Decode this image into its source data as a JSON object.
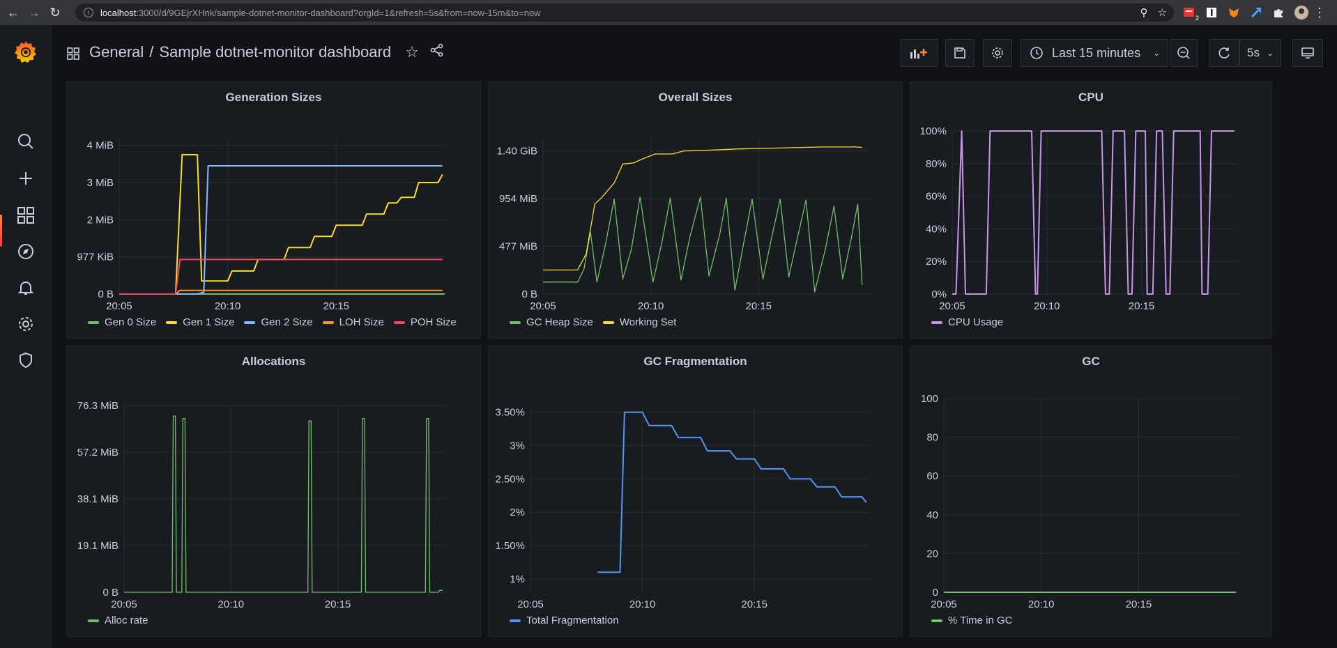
{
  "browser": {
    "url_host": "localhost",
    "url_path": ":3000/d/9GEjrXHnk/sample-dotnet-monitor-dashboard?orgId=1&refresh=5s&from=now-15m&to=now",
    "ext_badge": "2"
  },
  "header": {
    "folder": "General",
    "separator": "/",
    "title": "Sample dotnet-monitor dashboard",
    "time_range": "Last 15 minutes",
    "refresh": "5s"
  },
  "colors": {
    "green": "#73bf69",
    "yellow": "#fade2a",
    "blue": "#8ab8ff",
    "orange": "#ff9830",
    "red": "#f2495c",
    "purple": "#ca95e5",
    "fragblue": "#5794f2"
  },
  "panels": [
    {
      "title": "Generation Sizes",
      "legend": [
        "Gen 0 Size",
        "Gen 1 Size",
        "Gen 2 Size",
        "LOH Size",
        "POH Size"
      ],
      "chart_data": {
        "type": "line",
        "x_ticks": [
          "20:05",
          "20:10",
          "20:15"
        ],
        "y_ticks": [
          "0 B",
          "977 KiB",
          "2 MiB",
          "3 MiB",
          "4 MiB"
        ],
        "y_tick_values": [
          0,
          1,
          2,
          3,
          4
        ],
        "ylim": [
          0,
          4.2
        ],
        "x_range": [
          5,
          20.1
        ],
        "series": [
          {
            "name": "Gen 0 Size",
            "color": "green",
            "points": [
              [
                5,
                0
              ],
              [
                20,
                0
              ]
            ]
          },
          {
            "name": "Gen 1 Size",
            "color": "yellow",
            "points": [
              [
                5,
                0
              ],
              [
                7.6,
                0
              ],
              [
                7.9,
                3.75
              ],
              [
                8.6,
                3.75
              ],
              [
                8.8,
                0.35
              ],
              [
                9.1,
                0.35
              ],
              [
                9.2,
                0.35
              ],
              [
                10,
                0.35
              ],
              [
                10.2,
                0.62
              ],
              [
                11.2,
                0.62
              ],
              [
                11.4,
                0.93
              ],
              [
                12.6,
                0.93
              ],
              [
                12.8,
                1.25
              ],
              [
                13.8,
                1.25
              ],
              [
                14,
                1.55
              ],
              [
                14.8,
                1.55
              ],
              [
                15,
                1.85
              ],
              [
                16.2,
                1.85
              ],
              [
                16.4,
                2.15
              ],
              [
                17.2,
                2.15
              ],
              [
                17.4,
                2.45
              ],
              [
                17.8,
                2.45
              ],
              [
                18,
                2.6
              ],
              [
                18.6,
                2.6
              ],
              [
                18.8,
                3
              ],
              [
                19.7,
                3
              ],
              [
                19.9,
                3.22
              ]
            ]
          },
          {
            "name": "Gen 2 Size",
            "color": "blue",
            "points": [
              [
                5,
                0
              ],
              [
                8.6,
                0
              ],
              [
                8.9,
                0.05
              ],
              [
                9.1,
                3.45
              ],
              [
                19.9,
                3.45
              ]
            ]
          },
          {
            "name": "LOH Size",
            "color": "orange",
            "points": [
              [
                5,
                0
              ],
              [
                7.6,
                0
              ],
              [
                7.8,
                0.1
              ],
              [
                19.9,
                0.1
              ]
            ]
          },
          {
            "name": "POH Size",
            "color": "red",
            "points": [
              [
                5,
                0
              ],
              [
                7.6,
                0
              ],
              [
                7.8,
                0.93
              ],
              [
                19.9,
                0.93
              ]
            ]
          }
        ]
      }
    },
    {
      "title": "Overall Sizes",
      "legend": [
        "GC Heap Size",
        "Working Set"
      ],
      "chart_data": {
        "type": "line",
        "x_ticks": [
          "20:05",
          "20:10",
          "20:15"
        ],
        "y_ticks": [
          "0 B",
          "477 MiB",
          "954 MiB",
          "1.40 GiB"
        ],
        "y_tick_values": [
          0,
          477,
          954,
          1430
        ],
        "ylim": [
          0,
          1560
        ],
        "x_range": [
          5,
          20.1
        ],
        "series": [
          {
            "name": "GC Heap Size",
            "color": "green",
            "points": [
              [
                5,
                120
              ],
              [
                6.6,
                120
              ],
              [
                6.9,
                250
              ],
              [
                7.2,
                620
              ],
              [
                7.5,
                120
              ],
              [
                7.9,
                500
              ],
              [
                8.3,
                950
              ],
              [
                8.7,
                150
              ],
              [
                9.1,
                450
              ],
              [
                9.5,
                970
              ],
              [
                10.1,
                120
              ],
              [
                10.5,
                500
              ],
              [
                10.9,
                960
              ],
              [
                11.4,
                140
              ],
              [
                11.8,
                560
              ],
              [
                12.3,
                970
              ],
              [
                12.7,
                180
              ],
              [
                13.2,
                600
              ],
              [
                13.5,
                960
              ],
              [
                13.9,
                40
              ],
              [
                14.3,
                500
              ],
              [
                14.7,
                950
              ],
              [
                15.2,
                150
              ],
              [
                15.6,
                560
              ],
              [
                16,
                950
              ],
              [
                16.4,
                170
              ],
              [
                16.8,
                560
              ],
              [
                17.2,
                940
              ],
              [
                17.6,
                20
              ],
              [
                18.1,
                450
              ],
              [
                18.5,
                880
              ],
              [
                18.9,
                150
              ],
              [
                19.3,
                560
              ],
              [
                19.6,
                900
              ],
              [
                19.8,
                90
              ]
            ]
          },
          {
            "name": "Working Set",
            "color": "yellow",
            "points": [
              [
                5,
                240
              ],
              [
                6.6,
                240
              ],
              [
                7,
                400
              ],
              [
                7.4,
                900
              ],
              [
                7.7,
                960
              ],
              [
                8.3,
                1110
              ],
              [
                8.7,
                1300
              ],
              [
                9.2,
                1310
              ],
              [
                9.6,
                1350
              ],
              [
                10.2,
                1400
              ],
              [
                11,
                1400
              ],
              [
                11.5,
                1430
              ],
              [
                13,
                1440
              ],
              [
                14,
                1450
              ],
              [
                15,
                1455
              ],
              [
                16,
                1460
              ],
              [
                17,
                1465
              ],
              [
                18,
                1470
              ],
              [
                19.5,
                1470
              ],
              [
                19.8,
                1465
              ]
            ]
          }
        ]
      }
    },
    {
      "title": "CPU",
      "legend": [
        "CPU Usage"
      ],
      "chart_data": {
        "type": "line",
        "x_ticks": [
          "20:05",
          "20:10",
          "20:15"
        ],
        "y_ticks": [
          "0%",
          "20%",
          "40%",
          "60%",
          "80%",
          "100%"
        ],
        "y_tick_values": [
          0,
          20,
          40,
          60,
          80,
          100
        ],
        "ylim": [
          0,
          100
        ],
        "x_range": [
          5,
          20.1
        ],
        "series": [
          {
            "name": "CPU Usage",
            "color": "purple",
            "points": [
              [
                5,
                0
              ],
              [
                5.2,
                0
              ],
              [
                5.5,
                100
              ],
              [
                5.7,
                0
              ],
              [
                6.8,
                0
              ],
              [
                7,
                100
              ],
              [
                9.2,
                100
              ],
              [
                9.4,
                0
              ],
              [
                9.5,
                0
              ],
              [
                9.7,
                100
              ],
              [
                12.9,
                100
              ],
              [
                13.1,
                0
              ],
              [
                13.3,
                0
              ],
              [
                13.5,
                100
              ],
              [
                14.1,
                100
              ],
              [
                14.3,
                0
              ],
              [
                14.5,
                0
              ],
              [
                14.7,
                100
              ],
              [
                15.2,
                100
              ],
              [
                15.3,
                0
              ],
              [
                15.6,
                0
              ],
              [
                15.8,
                100
              ],
              [
                16.1,
                100
              ],
              [
                16.3,
                0
              ],
              [
                16.5,
                0
              ],
              [
                16.7,
                100
              ],
              [
                18.1,
                100
              ],
              [
                18.2,
                0
              ],
              [
                18.5,
                0
              ],
              [
                18.7,
                100
              ],
              [
                19.9,
                100
              ]
            ]
          }
        ]
      }
    },
    {
      "title": "Allocations",
      "legend": [
        "Alloc rate"
      ],
      "chart_data": {
        "type": "line",
        "x_ticks": [
          "20:05",
          "20:10",
          "20:15"
        ],
        "y_ticks": [
          "0 B",
          "19.1 MiB",
          "38.1 MiB",
          "57.2 MiB",
          "76.3 MiB"
        ],
        "y_tick_values": [
          0,
          19.1,
          38.1,
          57.2,
          76.3
        ],
        "ylim": [
          0,
          76.3
        ],
        "x_range": [
          5,
          20.1
        ],
        "series": [
          {
            "name": "Alloc rate",
            "color": "green",
            "points": [
              [
                5,
                0
              ],
              [
                7.25,
                0
              ],
              [
                7.3,
                72
              ],
              [
                7.4,
                72
              ],
              [
                7.45,
                0
              ],
              [
                7.7,
                0
              ],
              [
                7.75,
                71
              ],
              [
                7.85,
                71
              ],
              [
                7.9,
                0
              ],
              [
                13.6,
                0
              ],
              [
                13.65,
                70
              ],
              [
                13.75,
                70
              ],
              [
                13.8,
                0
              ],
              [
                16.1,
                0
              ],
              [
                16.15,
                71
              ],
              [
                16.25,
                71
              ],
              [
                16.3,
                0
              ],
              [
                19.1,
                0
              ],
              [
                19.15,
                71
              ],
              [
                19.25,
                71
              ],
              [
                19.3,
                0
              ],
              [
                19.7,
                0
              ],
              [
                19.75,
                0.8
              ],
              [
                19.9,
                0.8
              ]
            ]
          }
        ]
      }
    },
    {
      "title": "GC Fragmentation",
      "legend": [
        "Total Fragmentation"
      ],
      "chart_data": {
        "type": "line",
        "x_ticks": [
          "20:05",
          "20:10",
          "20:15"
        ],
        "y_ticks": [
          "1%",
          "1.50%",
          "2%",
          "2.50%",
          "3%",
          "3.50%"
        ],
        "y_tick_values": [
          1,
          1.5,
          2,
          2.5,
          3,
          3.5
        ],
        "ylim": [
          0.8,
          3.6
        ],
        "x_range": [
          5,
          20.1
        ],
        "series": [
          {
            "name": "Total Fragmentation",
            "color": "fragblue",
            "points": [
              [
                8,
                1.1
              ],
              [
                9,
                1.1
              ],
              [
                9.2,
                3.5
              ],
              [
                10,
                3.5
              ],
              [
                10.3,
                3.3
              ],
              [
                11.3,
                3.3
              ],
              [
                11.6,
                3.12
              ],
              [
                12.6,
                3.12
              ],
              [
                12.9,
                2.92
              ],
              [
                13.9,
                2.92
              ],
              [
                14.2,
                2.8
              ],
              [
                15,
                2.8
              ],
              [
                15.3,
                2.65
              ],
              [
                16.3,
                2.65
              ],
              [
                16.6,
                2.5
              ],
              [
                17.5,
                2.5
              ],
              [
                17.8,
                2.38
              ],
              [
                18.6,
                2.38
              ],
              [
                18.9,
                2.23
              ],
              [
                19.8,
                2.23
              ],
              [
                20,
                2.15
              ]
            ]
          }
        ]
      }
    },
    {
      "title": "GC",
      "legend": [
        "% Time in GC"
      ],
      "chart_data": {
        "type": "line",
        "x_ticks": [
          "20:05",
          "20:10",
          "20:15"
        ],
        "y_ticks": [
          "0",
          "20",
          "40",
          "60",
          "80",
          "100"
        ],
        "y_tick_values": [
          0,
          20,
          40,
          60,
          80,
          100
        ],
        "ylim": [
          0,
          100
        ],
        "x_range": [
          5,
          20.1
        ],
        "series": [
          {
            "name": "% Time in GC",
            "color": "green",
            "points": [
              [
                5,
                0
              ],
              [
                20,
                0
              ]
            ]
          }
        ]
      }
    }
  ]
}
